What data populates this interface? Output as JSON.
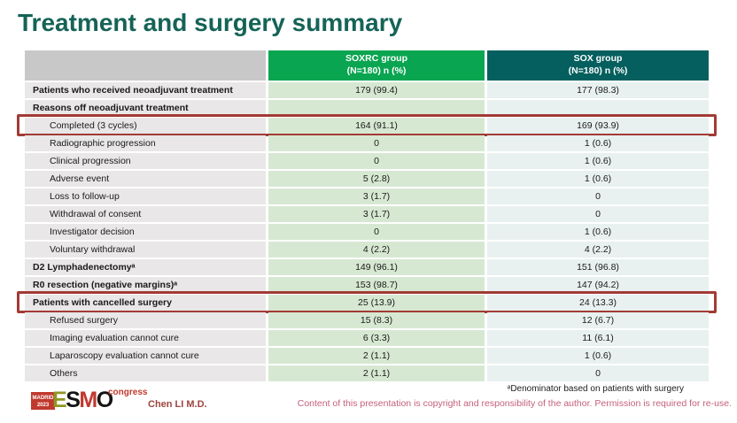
{
  "slide": {
    "title": "Treatment and surgery summary",
    "colors": {
      "title_teal": "#156357",
      "header_green": "#0aa551",
      "header_teal": "#045f5e",
      "cell_green": "#d7e8d2",
      "cell_teal": "#e8f1f0",
      "cell_gray": "#e9e7e7",
      "highlight_red": "#a23b35"
    }
  },
  "table": {
    "columns": [
      {
        "label": ""
      },
      {
        "label": "SOXRC group",
        "sublabel": "(N=180)  n (%)"
      },
      {
        "label": "SOX group",
        "sublabel": "(N=180)  n (%)"
      }
    ],
    "rows": [
      {
        "label": "Patients who received neoadjuvant treatment",
        "soxrc": "179 (99.4)",
        "sox": "177 (98.3)",
        "bold": true
      },
      {
        "label": "Reasons off neoadjuvant treatment",
        "soxrc": "",
        "sox": "",
        "bold": true
      },
      {
        "label": "Completed (3 cycles)",
        "soxrc": "164 (91.1)",
        "sox": "169 (93.9)",
        "indent": true,
        "highlight": true
      },
      {
        "label": "Radiographic progression",
        "soxrc": "0",
        "sox": "1 (0.6)",
        "indent": true
      },
      {
        "label": "Clinical progression",
        "soxrc": "0",
        "sox": "1 (0.6)",
        "indent": true
      },
      {
        "label": "Adverse event",
        "soxrc": "5 (2.8)",
        "sox": "1 (0.6)",
        "indent": true
      },
      {
        "label": "Loss to follow-up",
        "soxrc": "3 (1.7)",
        "sox": "0",
        "indent": true
      },
      {
        "label": "Withdrawal of consent",
        "soxrc": "3 (1.7)",
        "sox": "0",
        "indent": true
      },
      {
        "label": "Investigator decision",
        "soxrc": "0",
        "sox": "1 (0.6)",
        "indent": true
      },
      {
        "label": "Voluntary withdrawal",
        "soxrc": "4 (2.2)",
        "sox": "4 (2.2)",
        "indent": true
      },
      {
        "label": "D2 Lymphadenectomyᵃ",
        "soxrc": "149 (96.1)",
        "sox": "151 (96.8)",
        "bold": true
      },
      {
        "label": "R0 resection (negative margins)ᵃ",
        "soxrc": "153 (98.7)",
        "sox": "147 (94.2)",
        "bold": true
      },
      {
        "label": "Patients with cancelled surgery",
        "soxrc": "25 (13.9)",
        "sox": "24 (13.3)",
        "bold": true,
        "highlight": true
      },
      {
        "label": "Refused surgery",
        "soxrc": "15 (8.3)",
        "sox": "12 (6.7)",
        "indent": true
      },
      {
        "label": "Imaging evaluation cannot cure",
        "soxrc": "6 (3.3)",
        "sox": "11 (6.1)",
        "indent": true
      },
      {
        "label": "Laparoscopy evaluation cannot cure",
        "soxrc": "2 (1.1)",
        "sox": "1 (0.6)",
        "indent": true
      },
      {
        "label": "Others",
        "soxrc": "2 (1.1)",
        "sox": "0",
        "indent": true
      }
    ]
  },
  "footer": {
    "logo": {
      "badge_line1": "MADRID",
      "badge_line2": "2023",
      "letters": [
        "E",
        "S",
        "M",
        "O"
      ],
      "congress": "congress"
    },
    "presenter": "Chen LI M.D.",
    "footnote": "ᵃDenominator based on patients with surgery",
    "copyright": "Content of this presentation is copyright and responsibility of the author. Permission is required for re-use."
  }
}
